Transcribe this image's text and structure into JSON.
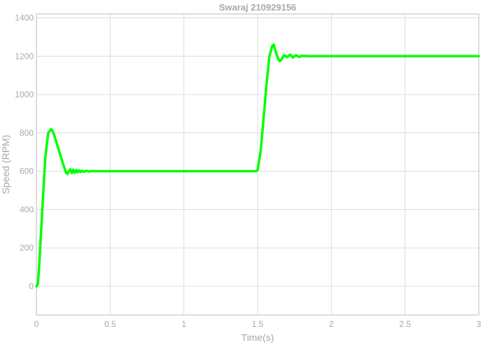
{
  "chart_data": {
    "type": "line",
    "title": "Swaraj 210929156",
    "xlabel": "Time(s)",
    "ylabel": "Speed (RPM)",
    "xlim": [
      0,
      3
    ],
    "ylim": [
      -150,
      1420
    ],
    "xticks": [
      0,
      0.5,
      1,
      1.5,
      2,
      2.5,
      3
    ],
    "xtick_labels": [
      "0",
      "0.5",
      "1",
      "1.5",
      "2",
      "2.5",
      "3"
    ],
    "yticks": [
      0,
      200,
      400,
      600,
      800,
      1000,
      1200,
      1400
    ],
    "ytick_labels": [
      "0",
      "200",
      "400",
      "600",
      "800",
      "1000",
      "1200",
      "1400"
    ],
    "grid": true,
    "colors": {
      "line": "#00ff00",
      "grid": "#dcdcdc",
      "axis": "#bdbdbd",
      "text": "#a8a8a8"
    },
    "series": [
      {
        "x": [
          0,
          0.01,
          0.02,
          0.04,
          0.06,
          0.08,
          0.1,
          0.11,
          0.12,
          0.14,
          0.16,
          0.18,
          0.2,
          0.21,
          0.22,
          0.23,
          0.24,
          0.25,
          0.26,
          0.27,
          0.28,
          0.29,
          0.3,
          0.31,
          0.32,
          0.34,
          0.36,
          0.38,
          0.4,
          0.45,
          0.5,
          1.0,
          1.49,
          1.5,
          1.52,
          1.54,
          1.56,
          1.58,
          1.6,
          1.61,
          1.62,
          1.64,
          1.65,
          1.66,
          1.68,
          1.7,
          1.72,
          1.74,
          1.76,
          1.78,
          1.8,
          1.85,
          1.9,
          2.0,
          3.0
        ],
        "values": [
          0,
          10,
          120,
          400,
          670,
          800,
          820,
          810,
          790,
          740,
          690,
          640,
          595,
          585,
          600,
          610,
          590,
          608,
          592,
          606,
          594,
          604,
          596,
          603,
          597,
          602,
          598,
          601,
          600,
          600,
          600,
          600,
          600,
          605,
          700,
          870,
          1050,
          1200,
          1255,
          1260,
          1230,
          1185,
          1175,
          1180,
          1205,
          1195,
          1208,
          1193,
          1205,
          1196,
          1202,
          1200,
          1200,
          1200,
          1200
        ]
      }
    ]
  }
}
